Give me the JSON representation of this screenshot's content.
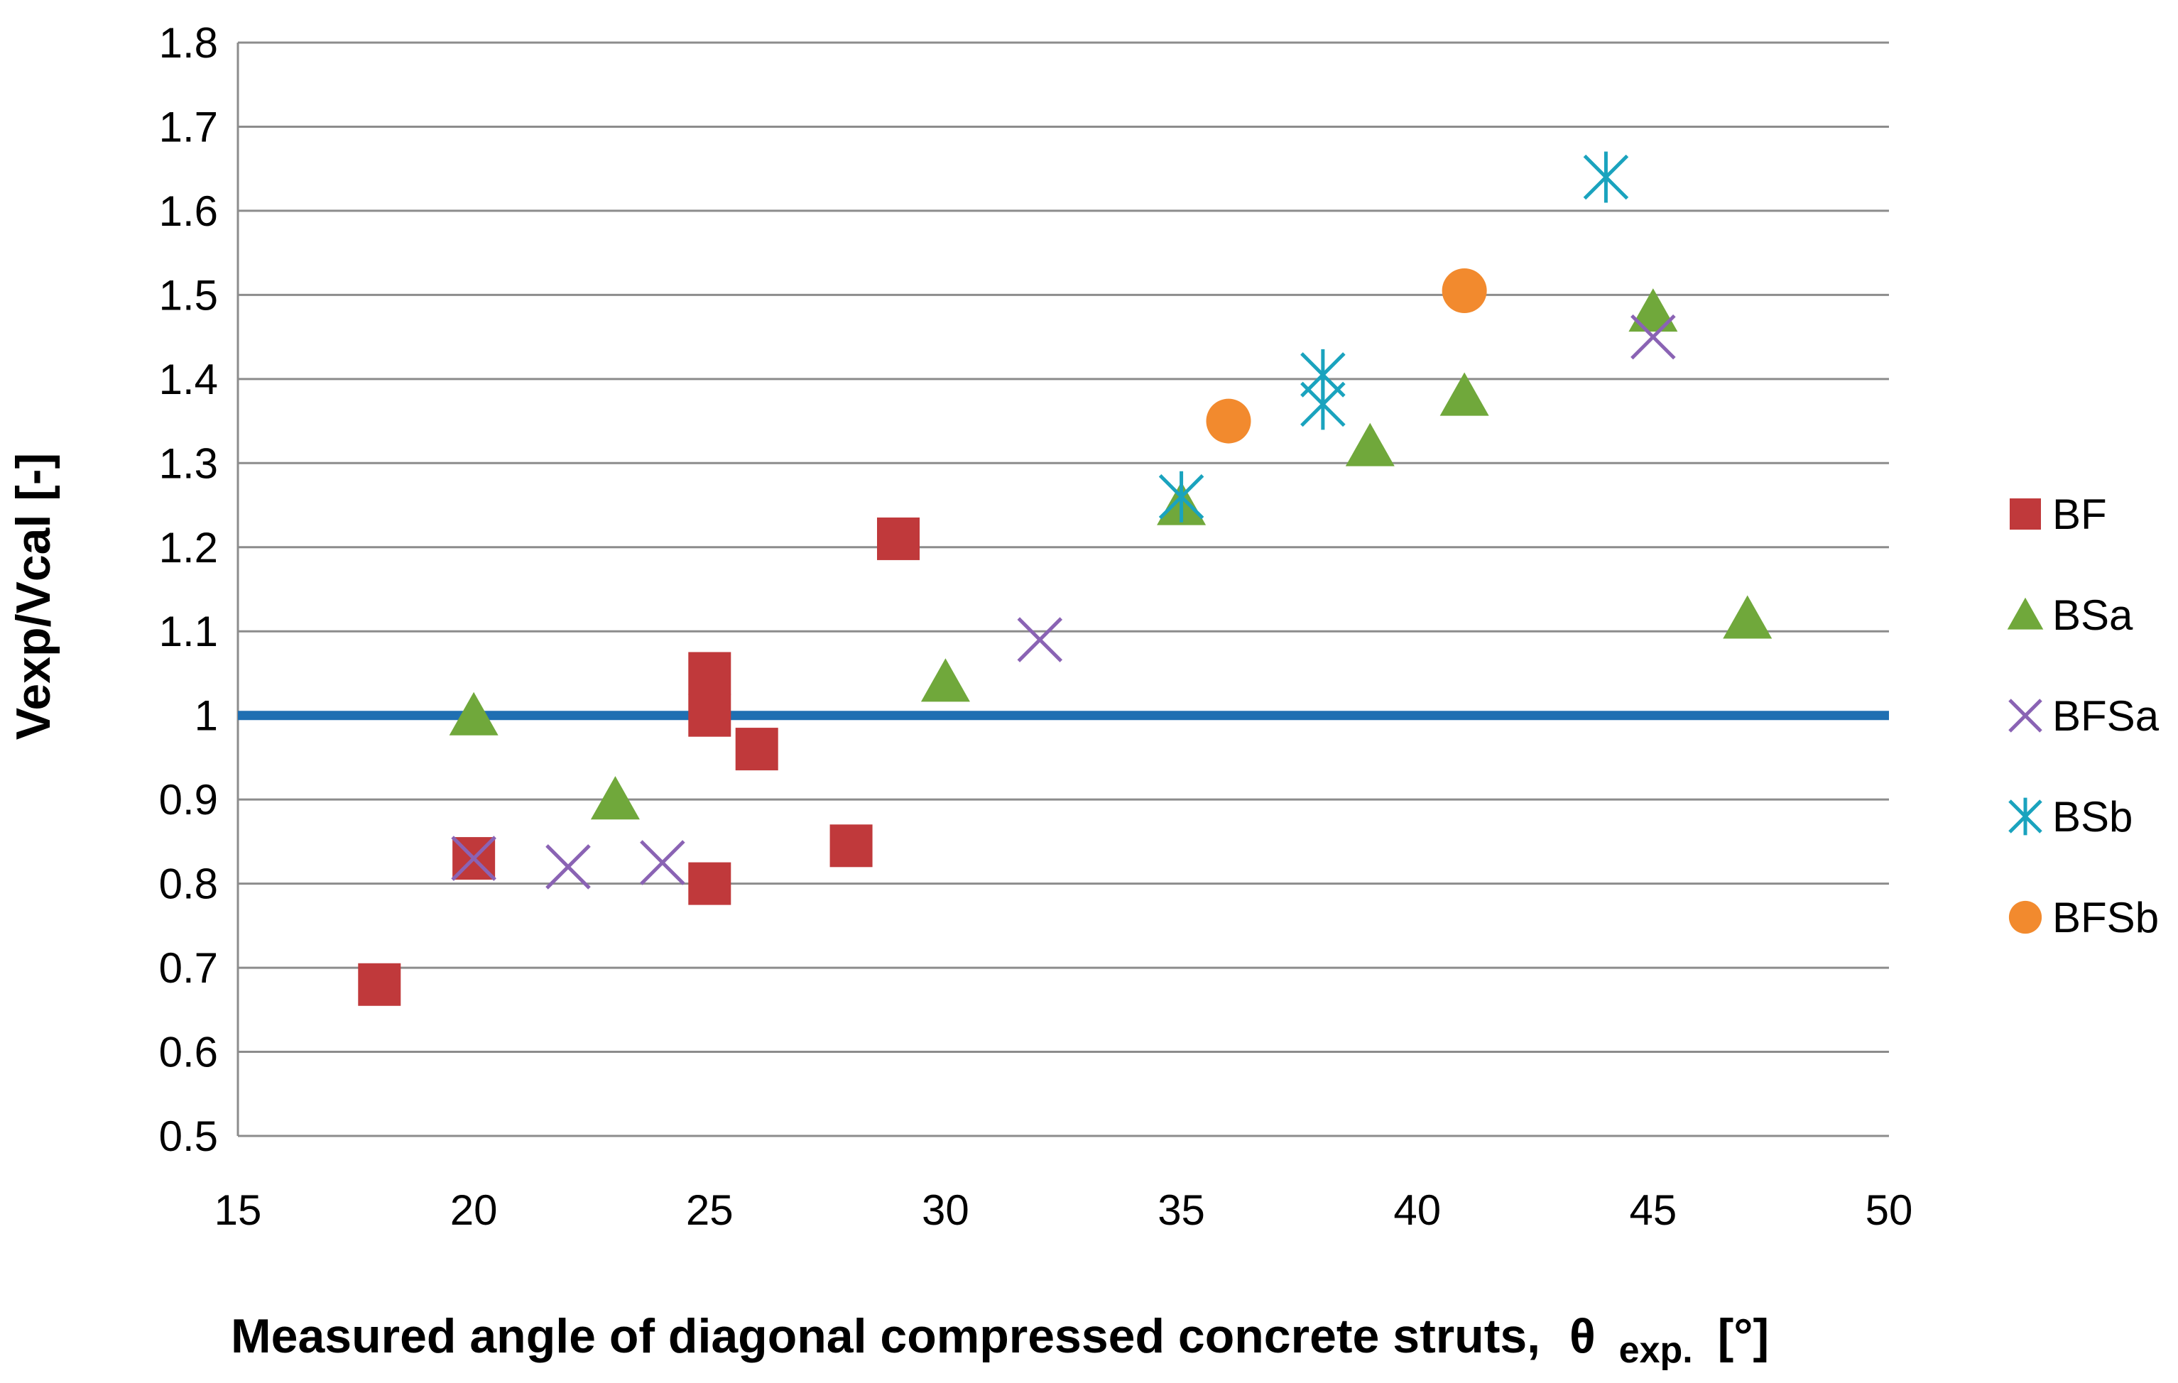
{
  "chart_data": {
    "type": "scatter",
    "title": "",
    "xlabel": "Measured angle of diagonal compressed concrete struts,",
    "xlabel_symbol": "θ",
    "xlabel_subscript": "exp.",
    "xlabel_unit": "[°]",
    "ylabel": "Vexp/Vcal [-]",
    "xlim": [
      15,
      50
    ],
    "ylim": [
      0.5,
      1.8
    ],
    "x_ticks": [
      15,
      20,
      25,
      30,
      35,
      40,
      45,
      50
    ],
    "y_ticks": [
      0.5,
      0.6,
      0.7,
      0.8,
      0.9,
      1.0,
      1.1,
      1.2,
      1.3,
      1.4,
      1.5,
      1.6,
      1.7,
      1.8
    ],
    "y_tick_labels": [
      "0.5",
      "0.6",
      "0.7",
      "0.8",
      "0.9",
      "1",
      "1.1",
      "1.2",
      "1.3",
      "1.4",
      "1.5",
      "1.6",
      "1.7",
      "1.8"
    ],
    "grid": true,
    "legend_position": "right",
    "reference_line": {
      "y": 1.0,
      "color": "#1f6fb2"
    },
    "series": [
      {
        "name": "BF",
        "marker": "square",
        "color": "#c0393b",
        "points": [
          [
            18,
            0.68
          ],
          [
            20,
            0.83
          ],
          [
            25,
            1.05
          ],
          [
            25,
            1.0
          ],
          [
            25,
            0.8
          ],
          [
            26,
            0.96
          ],
          [
            28,
            0.845
          ],
          [
            29,
            1.21
          ]
        ]
      },
      {
        "name": "BSa",
        "marker": "triangle",
        "color": "#70a83b",
        "points": [
          [
            20,
            1.0
          ],
          [
            23,
            0.9
          ],
          [
            30,
            1.04
          ],
          [
            35,
            1.25
          ],
          [
            39,
            1.32
          ],
          [
            41,
            1.38
          ],
          [
            45,
            1.48
          ],
          [
            47,
            1.115
          ]
        ]
      },
      {
        "name": "BFSa",
        "marker": "x",
        "color": "#8a63b4",
        "points": [
          [
            20,
            0.83
          ],
          [
            22,
            0.82
          ],
          [
            24,
            0.825
          ],
          [
            32,
            1.09
          ],
          [
            45,
            1.45
          ]
        ]
      },
      {
        "name": "BSb",
        "marker": "asterisk",
        "color": "#1aa3be",
        "points": [
          [
            35,
            1.26
          ],
          [
            38,
            1.405
          ],
          [
            38,
            1.37
          ],
          [
            44,
            1.64
          ]
        ]
      },
      {
        "name": "BFSb",
        "marker": "circle",
        "color": "#f28a2e",
        "points": [
          [
            36,
            1.35
          ],
          [
            41,
            1.505
          ]
        ]
      }
    ]
  }
}
